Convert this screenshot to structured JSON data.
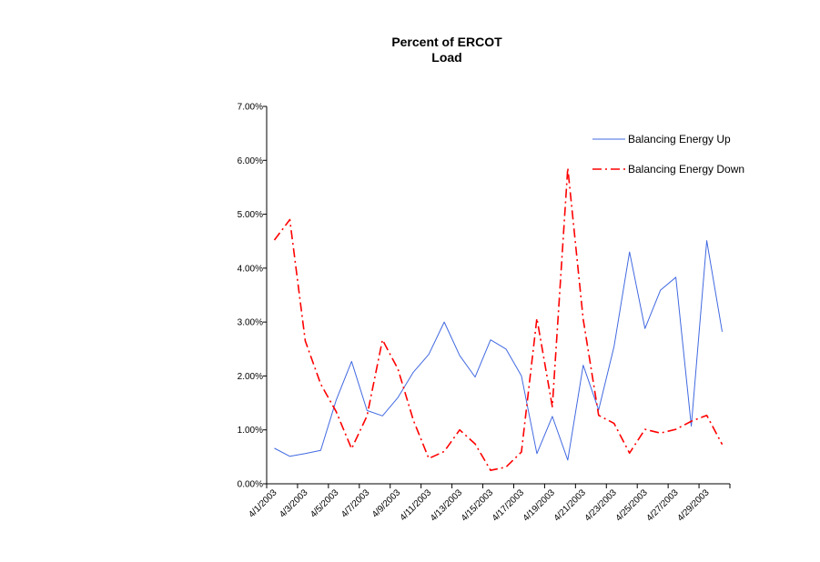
{
  "chart_data": {
    "type": "line",
    "title_lines": [
      "Percent of ERCOT",
      "Load"
    ],
    "xlabel": "",
    "ylabel": "",
    "ylim": [
      0,
      0.07
    ],
    "y_ticks": [
      0,
      0.01,
      0.02,
      0.03,
      0.04,
      0.05,
      0.06,
      0.07
    ],
    "y_tick_labels": [
      "0.00%",
      "1.00%",
      "2.00%",
      "3.00%",
      "4.00%",
      "5.00%",
      "6.00%",
      "7.00%"
    ],
    "x_tick_labels": [
      "4/1/2003",
      "4/3/2003",
      "4/5/2003",
      "4/7/2003",
      "4/9/2003",
      "4/11/2003",
      "4/13/2003",
      "4/15/2003",
      "4/17/2003",
      "4/19/2003",
      "4/21/2003",
      "4/23/2003",
      "4/25/2003",
      "4/27/2003",
      "4/29/2003"
    ],
    "categories": [
      "4/1/2003",
      "4/2/2003",
      "4/3/2003",
      "4/4/2003",
      "4/5/2003",
      "4/6/2003",
      "4/7/2003",
      "4/8/2003",
      "4/9/2003",
      "4/10/2003",
      "4/11/2003",
      "4/12/2003",
      "4/13/2003",
      "4/14/2003",
      "4/15/2003",
      "4/16/2003",
      "4/17/2003",
      "4/18/2003",
      "4/19/2003",
      "4/20/2003",
      "4/21/2003",
      "4/22/2003",
      "4/23/2003",
      "4/24/2003",
      "4/25/2003",
      "4/26/2003",
      "4/27/2003",
      "4/28/2003",
      "4/29/2003",
      "4/30/2003"
    ],
    "grid": false,
    "legend_position": "top-right",
    "series": [
      {
        "name": "Balancing Energy Up",
        "color": "#4169E1",
        "dash": "solid",
        "values": [
          0.0066,
          0.0051,
          0.0056,
          0.0062,
          0.0155,
          0.0227,
          0.0136,
          0.0126,
          0.016,
          0.0207,
          0.024,
          0.03,
          0.0238,
          0.0198,
          0.0267,
          0.025,
          0.02,
          0.0056,
          0.0125,
          0.0044,
          0.022,
          0.0137,
          0.0255,
          0.043,
          0.0288,
          0.0359,
          0.0383,
          0.0107,
          0.0451,
          0.0282
        ]
      },
      {
        "name": "Balancing Energy Down",
        "color": "#FF0000",
        "dash": "dash-dot",
        "values": [
          0.0452,
          0.049,
          0.0265,
          0.0185,
          0.0134,
          0.0065,
          0.0126,
          0.0267,
          0.0213,
          0.0118,
          0.0047,
          0.006,
          0.01,
          0.0074,
          0.0025,
          0.0031,
          0.0059,
          0.0307,
          0.0143,
          0.0586,
          0.0305,
          0.0127,
          0.0112,
          0.0057,
          0.0101,
          0.0094,
          0.0101,
          0.0116,
          0.0127,
          0.0073
        ]
      }
    ]
  }
}
